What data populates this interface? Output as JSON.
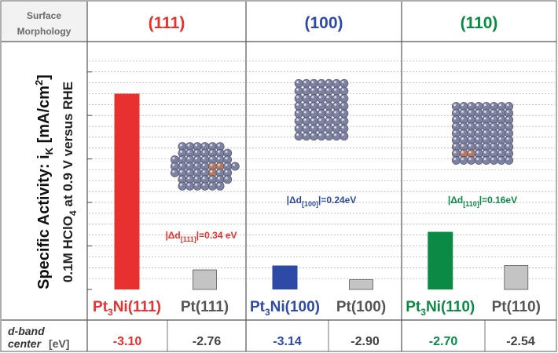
{
  "header": {
    "row_label_line1": "Surface",
    "row_label_line2": "Morphology"
  },
  "y_axis": {
    "line1": "Specific Activity: i",
    "line1_sub": "K",
    "line1_rest": " [mA/cm",
    "line1_sup": "2",
    "line1_end": "]",
    "line2": "0.1M HClO",
    "line2_sub": "4",
    "line2_rest": " at 0.9 V versus RHE"
  },
  "dband_label": {
    "line1": "d-band",
    "line2": "center",
    "unit": "[eV]"
  },
  "colors": {
    "red": "#e8312e",
    "blue": "#2d4aa6",
    "green": "#0b8a45",
    "gray_bar": "#c4c4c4",
    "atom": "#7d82a0"
  },
  "chart_data": {
    "type": "bar",
    "title": "",
    "ylabel": "Specific Activity: iK [mA/cm2] 0.1M HClO4 at 0.9 V versus RHE",
    "ylim": [
      0,
      22
    ],
    "grid": true,
    "facets": [
      {
        "title": "(111)",
        "color": "#e8312e",
        "annotation": {
          "prefix": "|Δd",
          "sub": "[111]",
          "suffix": "|=0.34 eV"
        },
        "categories": [
          {
            "base": "Pt",
            "sub": "3",
            "rest": "Ni(111)",
            "label": "Pt3Ni(111)",
            "value": 18.0,
            "dband": "-3.10",
            "alloy": true
          },
          {
            "base": "Pt",
            "sub": "",
            "rest": "(111)",
            "label": "Pt(111)",
            "value": 1.8,
            "dband": "-2.76",
            "alloy": false
          }
        ]
      },
      {
        "title": "(100)",
        "color": "#2d4aa6",
        "annotation": {
          "prefix": "|Δd",
          "sub": "[100]",
          "suffix": "|=0.24eV"
        },
        "categories": [
          {
            "base": "Pt",
            "sub": "3",
            "rest": "Ni(100)",
            "label": "Pt3Ni(100)",
            "value": 2.2,
            "dband": "-3.14",
            "alloy": true
          },
          {
            "base": "Pt",
            "sub": "",
            "rest": "(100)",
            "label": "Pt(100)",
            "value": 0.9,
            "dband": "-2.90",
            "alloy": false
          }
        ]
      },
      {
        "title": "(110)",
        "color": "#0b8a45",
        "annotation": {
          "prefix": "|Δd",
          "sub": "[110]",
          "suffix": "|=0.16eV"
        },
        "categories": [
          {
            "base": "Pt",
            "sub": "3",
            "rest": "Ni(110)",
            "label": "Pt3Ni(110)",
            "value": 5.3,
            "dband": "-2.70",
            "alloy": true
          },
          {
            "base": "Pt",
            "sub": "",
            "rest": "(110)",
            "label": "Pt(110)",
            "value": 2.2,
            "dband": "-2.54",
            "alloy": false
          }
        ]
      }
    ]
  }
}
